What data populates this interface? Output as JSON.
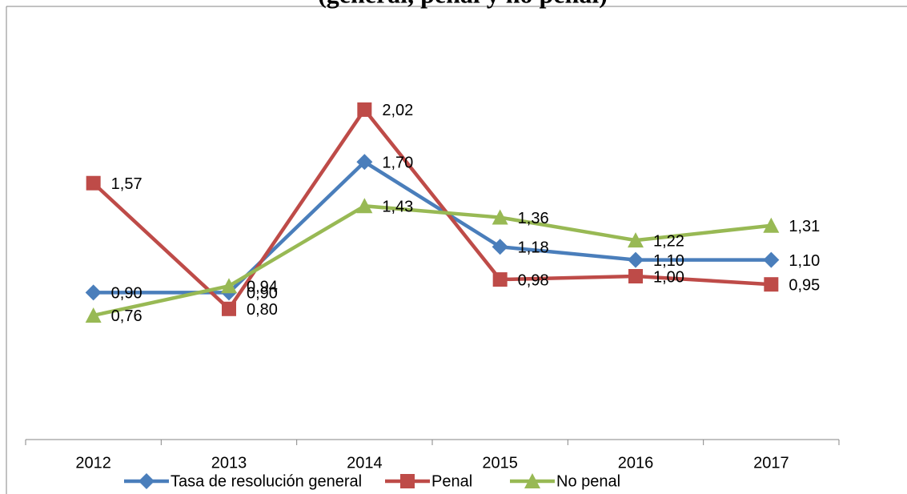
{
  "chart_data": {
    "type": "line",
    "title": "(general, penal y no penal)",
    "categories": [
      "2012",
      "2013",
      "2014",
      "2015",
      "2016",
      "2017"
    ],
    "series": [
      {
        "name": "Tasa de resolución general",
        "color": "#4a7ebb",
        "marker": "diamond",
        "values": [
          0.9,
          0.9,
          1.7,
          1.18,
          1.1,
          1.1
        ],
        "value_labels": [
          "0,90",
          "0,90",
          "1,70",
          "1,18",
          "1,10",
          "1,10"
        ]
      },
      {
        "name": "Penal",
        "color": "#be4b48",
        "marker": "square",
        "values": [
          1.57,
          0.8,
          2.02,
          0.98,
          1.0,
          0.95
        ],
        "value_labels": [
          "1,57",
          "0,80",
          "2,02",
          "0,98",
          "1,00",
          "0,95"
        ]
      },
      {
        "name": "No penal",
        "color": "#98b954",
        "marker": "triangle",
        "values": [
          0.76,
          0.94,
          1.43,
          1.36,
          1.22,
          1.31
        ],
        "value_labels": [
          "0,76",
          "0,94",
          "1,43",
          "1,36",
          "1,22",
          "1,31"
        ]
      }
    ],
    "ylim": [
      0,
      2.5
    ],
    "legend": "bottom"
  }
}
